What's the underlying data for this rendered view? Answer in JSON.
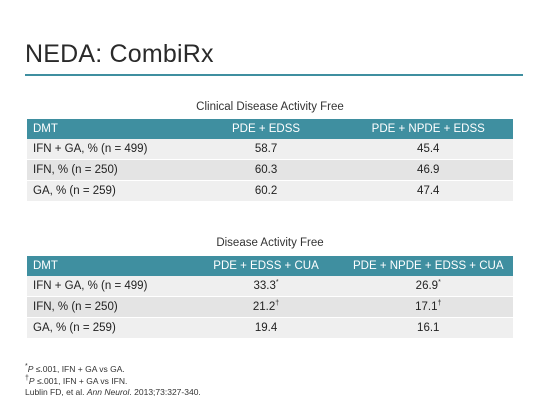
{
  "slide": {
    "title": "NEDA: CombiRx"
  },
  "table1": {
    "caption": "Clinical Disease Activity Free",
    "headers": [
      "DMT",
      "PDE + EDSS",
      "PDE + NPDE + EDSS"
    ],
    "rows": [
      {
        "dmt": "IFN + GA, % (n = 499)",
        "v1": "58.7",
        "v1_sup": "",
        "v2": "45.4",
        "v2_sup": ""
      },
      {
        "dmt": "IFN, % (n = 250)",
        "v1": "60.3",
        "v1_sup": "",
        "v2": "46.9",
        "v2_sup": ""
      },
      {
        "dmt": "GA, % (n = 259)",
        "v1": "60.2",
        "v1_sup": "",
        "v2": "47.4",
        "v2_sup": ""
      }
    ]
  },
  "table2": {
    "caption": "Disease Activity Free",
    "headers": [
      "DMT",
      "PDE + EDSS + CUA",
      "PDE + NPDE + EDSS + CUA"
    ],
    "rows": [
      {
        "dmt": "IFN + GA, % (n = 499)",
        "v1": "33.3",
        "v1_sup": "*",
        "v2": "26.9",
        "v2_sup": "*"
      },
      {
        "dmt": "IFN, % (n = 250)",
        "v1": "21.2",
        "v1_sup": "†",
        "v2": "17.1",
        "v2_sup": "†"
      },
      {
        "dmt": "GA, % (n = 259)",
        "v1": "19.4",
        "v1_sup": "",
        "v2": "16.1",
        "v2_sup": ""
      }
    ]
  },
  "footnotes": {
    "fn1_symbol": "*",
    "fn1_p": "P",
    "fn1_text": " ≤.001, IFN + GA vs GA.",
    "fn2_symbol": "†",
    "fn2_p": "P",
    "fn2_text": " ≤.001, IFN + GA vs IFN.",
    "citation_pre": "Lublin FD, et al. ",
    "citation_journal": "Ann Neurol",
    "citation_post": ". 2013;73:327-340."
  },
  "colors": {
    "accent": "#3f8fa0",
    "row_light": "#efefef",
    "row_dark": "#e4e4e4"
  }
}
